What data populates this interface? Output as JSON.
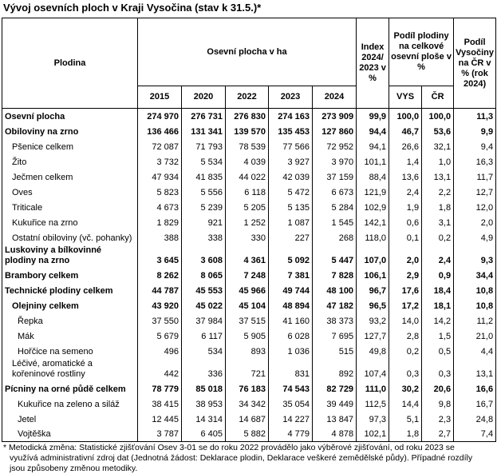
{
  "title": "Vývoj osevních ploch v Kraji Vysočina (stav k 31.5.)*",
  "header": {
    "plodina": "Plodina",
    "osevni": "Osevní plocha v ha",
    "years": [
      "2015",
      "2020",
      "2022",
      "2023",
      "2024"
    ],
    "index": "Index 2024/ 2023 v %",
    "podil": "Podíl plodiny na celkové osevní ploše v %",
    "vys": "VYS",
    "cr": "ČR",
    "podil_vys": "Podíl Vysočiny na ČR v % (rok 2024)"
  },
  "rows": [
    {
      "name": "Osevní plocha",
      "bold": true,
      "level": 0,
      "values": [
        "274 970",
        "276 731",
        "276 830",
        "274 163",
        "273 909",
        "99,9",
        "100,0",
        "100,0",
        "11,3"
      ]
    },
    {
      "name": "Obiloviny na zrno",
      "bold": true,
      "level": 0,
      "values": [
        "136 466",
        "131 341",
        "139 570",
        "135 453",
        "127 860",
        "94,4",
        "46,7",
        "53,6",
        "9,9"
      ]
    },
    {
      "name": "Pšenice celkem",
      "bold": false,
      "level": 1,
      "values": [
        "72 087",
        "71 793",
        "78 539",
        "77 566",
        "72 952",
        "94,1",
        "26,6",
        "32,1",
        "9,4"
      ]
    },
    {
      "name": "Žito",
      "bold": false,
      "level": 1,
      "values": [
        "3 732",
        "5 534",
        "4 039",
        "3 927",
        "3 970",
        "101,1",
        "1,4",
        "1,0",
        "16,3"
      ]
    },
    {
      "name": "Ječmen celkem",
      "bold": false,
      "level": 1,
      "values": [
        "47 934",
        "41 835",
        "44 022",
        "42 039",
        "37 159",
        "88,4",
        "13,6",
        "13,1",
        "11,7"
      ]
    },
    {
      "name": "Oves",
      "bold": false,
      "level": 1,
      "values": [
        "5 823",
        "5 556",
        "6 118",
        "5 472",
        "6 673",
        "121,9",
        "2,4",
        "2,2",
        "12,7"
      ]
    },
    {
      "name": "Triticale",
      "bold": false,
      "level": 1,
      "values": [
        "4 673",
        "5 239",
        "5 205",
        "5 135",
        "5 284",
        "102,9",
        "1,9",
        "1,8",
        "12,0"
      ]
    },
    {
      "name": "Kukuřice na zrno",
      "bold": false,
      "level": 1,
      "values": [
        "1 829",
        "921",
        "1 252",
        "1 087",
        "1 545",
        "142,1",
        "0,6",
        "3,1",
        "2,0"
      ]
    },
    {
      "name": "Ostatní obiloviny (vč. pohanky)",
      "bold": false,
      "level": 1,
      "values": [
        "388",
        "338",
        "330",
        "227",
        "268",
        "118,0",
        "0,1",
        "0,2",
        "4,9"
      ]
    },
    {
      "name": "Luskoviny a bílkovinné plodiny na zrno",
      "bold": true,
      "level": 0,
      "double": true,
      "values": [
        "3 645",
        "3 608",
        "4 361",
        "5 092",
        "5 447",
        "107,0",
        "2,0",
        "2,4",
        "9,3"
      ]
    },
    {
      "name": "Brambory celkem",
      "bold": true,
      "level": 0,
      "values": [
        "8 262",
        "8 065",
        "7 248",
        "7 381",
        "7 828",
        "106,1",
        "2,9",
        "0,9",
        "34,4"
      ]
    },
    {
      "name": "Technické plodiny celkem",
      "bold": true,
      "level": 0,
      "values": [
        "44 787",
        "45 553",
        "45 966",
        "49 744",
        "48 100",
        "96,7",
        "17,6",
        "18,4",
        "10,8"
      ]
    },
    {
      "name": "Olejniny celkem",
      "bold": true,
      "level": 1,
      "values": [
        "43 920",
        "45 022",
        "45 104",
        "48 894",
        "47 182",
        "96,5",
        "17,2",
        "18,1",
        "10,8"
      ]
    },
    {
      "name": "Řepka",
      "bold": false,
      "level": 2,
      "values": [
        "37 550",
        "37 984",
        "37 515",
        "41 160",
        "38 373",
        "93,2",
        "14,0",
        "14,2",
        "11,2"
      ]
    },
    {
      "name": "Mák",
      "bold": false,
      "level": 2,
      "values": [
        "5 679",
        "6 117",
        "5 905",
        "6 028",
        "7 695",
        "127,7",
        "2,8",
        "1,5",
        "21,0"
      ]
    },
    {
      "name": "Hořčice na semeno",
      "bold": false,
      "level": 2,
      "values": [
        "496",
        "534",
        "893",
        "1 036",
        "515",
        "49,8",
        "0,2",
        "0,5",
        "4,4"
      ]
    },
    {
      "name": "Léčivé, aromatické a kořeninové rostliny",
      "bold": false,
      "level": 1,
      "double": true,
      "values": [
        "442",
        "336",
        "721",
        "831",
        "892",
        "107,4",
        "0,3",
        "0,3",
        "13,1"
      ]
    },
    {
      "name": "Pícniny na orné půdě celkem",
      "bold": true,
      "level": 0,
      "values": [
        "78 779",
        "85 018",
        "76 183",
        "74 543",
        "82 729",
        "111,0",
        "30,2",
        "20,6",
        "16,6"
      ]
    },
    {
      "name": "Kukuřice na zeleno a siláž",
      "bold": false,
      "level": 2,
      "values": [
        "38 415",
        "38 953",
        "34 342",
        "35 054",
        "39 449",
        "112,5",
        "14,4",
        "9,8",
        "16,7"
      ]
    },
    {
      "name": "Jetel",
      "bold": false,
      "level": 2,
      "values": [
        "12 445",
        "14 314",
        "14 687",
        "14 227",
        "13 847",
        "97,3",
        "5,1",
        "2,3",
        "24,8"
      ]
    },
    {
      "name": "Vojtěška",
      "bold": false,
      "level": 2,
      "values": [
        "3 787",
        "6 405",
        "5 882",
        "4 779",
        "4 878",
        "102,1",
        "1,8",
        "2,7",
        "7,4"
      ]
    }
  ],
  "footnote": {
    "line1": "* Metodická změna: Statistické zjišťování Osev 3-01 se do roku 2022 provádělo jako výběrové zjišťování, od roku 2023 se",
    "line2": "využívá administrativní zdroj dat (Jednotná žádost: Deklarace plodin, Deklarace veškeré zemědělské půdy). Případné rozdíly",
    "line3": "jsou způsobeny změnou metodiky."
  }
}
